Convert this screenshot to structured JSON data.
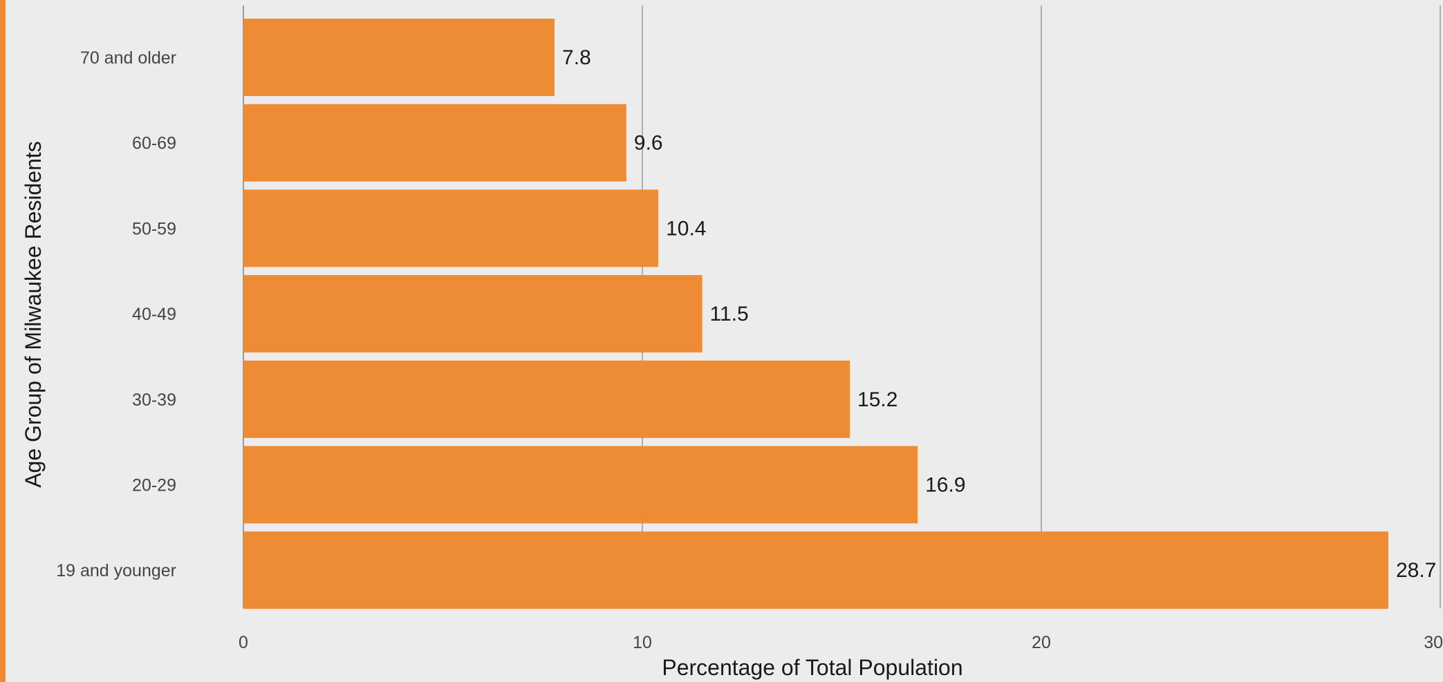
{
  "colors": {
    "bar": "#ee8b35",
    "accent_stripe": "#ee8b35",
    "background": "#ececec",
    "gridline": "#9a9a9a"
  },
  "chart_data": {
    "type": "bar",
    "orientation": "horizontal",
    "categories": [
      "70 and older",
      "60-69",
      "50-59",
      "40-49",
      "30-39",
      "20-29",
      "19 and younger"
    ],
    "values": [
      7.8,
      9.6,
      10.4,
      11.5,
      15.2,
      16.9,
      28.7
    ],
    "data_labels": [
      "7.8",
      "9.6",
      "10.4",
      "11.5",
      "15.2",
      "16.9",
      "28.7"
    ],
    "xlabel": "Percentage of Total Population",
    "ylabel": "Age Group of Milwaukee Residents",
    "xlim": [
      0,
      30
    ],
    "x_ticks": [
      0,
      10,
      20,
      30
    ],
    "x_tick_labels": [
      "0",
      "10",
      "20",
      "30"
    ],
    "grid": "vertical",
    "legend": "none"
  }
}
